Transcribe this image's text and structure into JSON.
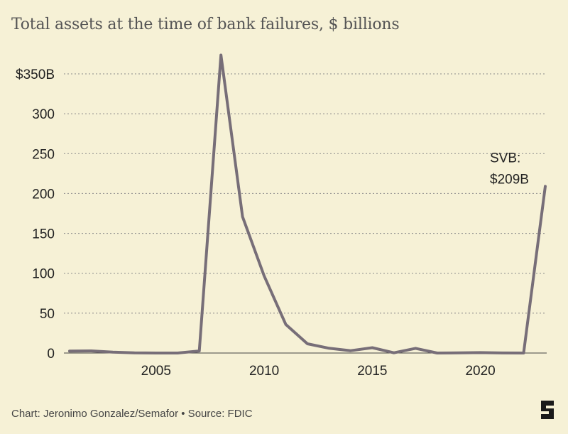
{
  "title": "Total assets at the time of bank failures, $ billions",
  "footer": "Chart: Jeronimo Gonzalez/Semafor • Source: FDIC",
  "colors": {
    "background": "#f6f1d6",
    "line": "#776e78",
    "grid": "#8a8a8a",
    "logo": "#1a1a1a"
  },
  "icons": {
    "brand": "semafor-logo-icon"
  },
  "chart_data": {
    "type": "line",
    "title": "Total assets at the time of bank failures, $ billions",
    "xlabel": "",
    "ylabel": "",
    "xlim": [
      2001,
      2023
    ],
    "ylim": [
      0,
      350
    ],
    "grid": true,
    "yticks": [
      0,
      50,
      100,
      150,
      200,
      250,
      300,
      350
    ],
    "ytick_labels": [
      "0",
      "50",
      "100",
      "150",
      "200",
      "250",
      "300",
      "$350B"
    ],
    "xticks": [
      2005,
      2010,
      2015,
      2020
    ],
    "xtick_labels": [
      "2005",
      "2010",
      "2015",
      "2020"
    ],
    "series": [
      {
        "x": [
          2001,
          2002,
          2003,
          2004,
          2005,
          2006,
          2007,
          2008,
          2009,
          2010,
          2011,
          2012,
          2013,
          2014,
          2015,
          2016,
          2017,
          2018,
          2019,
          2020,
          2021,
          2022,
          2023
        ],
        "values": [
          2.4,
          2.7,
          1.1,
          0.2,
          0,
          0,
          2.6,
          373.6,
          170.9,
          96.5,
          35.9,
          11.6,
          6.0,
          2.9,
          6.7,
          0.3,
          5.9,
          0,
          0.2,
          0.5,
          0.1,
          0,
          209
        ]
      }
    ],
    "annotations": [
      {
        "x": 2023,
        "y": 209,
        "lines": [
          "SVB:",
          "$209B"
        ]
      }
    ]
  }
}
